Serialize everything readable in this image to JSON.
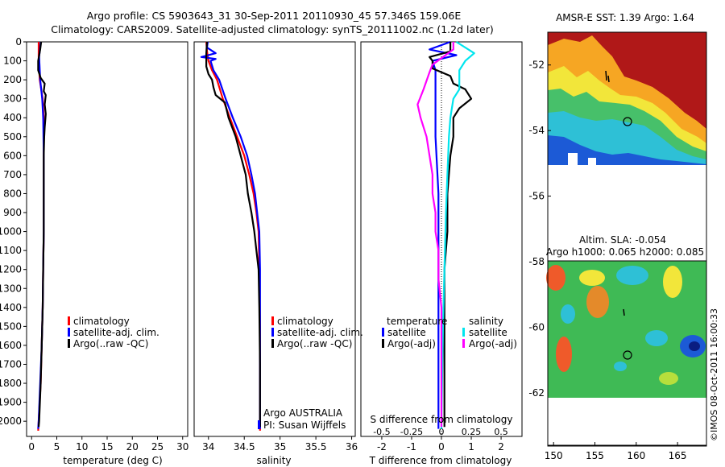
{
  "header": {
    "line1": "Argo profile: CS 5903643_31 30-Sep-2011 20110930_45 57.346S 159.06E",
    "line2": "Climatology: CARS2009. Satellite-adjusted climatology: synTS_20111002.nc (1.2d later)"
  },
  "colors": {
    "climatology": "#ff0000",
    "satellite_adj": "#0000ff",
    "argo": "#000000",
    "satellite_salinity": "#00e5ee",
    "argo_salinity_adj": "#ff00ff"
  },
  "legends": {
    "temperature_panel": [
      "climatology",
      "satellite-adj. clim.",
      "Argo(..raw -QC)"
    ],
    "salinity_panel": [
      "climatology",
      "satellite-adj. clim.",
      "Argo(..raw -QC)"
    ],
    "difference_panel": {
      "temp_heading": "temperature",
      "sal_heading": "salinity",
      "temp_items": [
        "satellite",
        "Argo(-adj)"
      ],
      "sal_items": [
        "satellite",
        "Argo(-adj)"
      ]
    }
  },
  "credits": {
    "agency": "Argo AUSTRALIA",
    "pi": "PI: Susan Wijffels",
    "stamp": "©IMOS 08-Oct-2011 16:00:33"
  },
  "maps": {
    "sst_title": "AMSR-E SST: 1.39 Argo: 1.64",
    "sla_title1": "Altim. SLA: -0.054",
    "sla_title2": "Argo h1000: 0.065 h2000: 0.085",
    "y_ticks": [
      "-52",
      "-54",
      "-56",
      "-58",
      "-60",
      "-62"
    ],
    "x_ticks": [
      "150",
      "155",
      "160",
      "165"
    ],
    "float_position": {
      "lon": 159.06,
      "lat": -57.346
    }
  },
  "chart_data": [
    {
      "type": "line",
      "panel": "temperature",
      "xlabel": "temperature (deg C)",
      "ylabel": "",
      "xlim": [
        -1,
        31
      ],
      "ylim": [
        2080,
        0
      ],
      "x_ticks": [
        "0",
        "5",
        "10",
        "15",
        "20",
        "25",
        "30"
      ],
      "y_ticks": [
        "0",
        "100",
        "200",
        "300",
        "400",
        "500",
        "600",
        "700",
        "800",
        "900",
        "1000",
        "1100",
        "1200",
        "1300",
        "1400",
        "1500",
        "1600",
        "1700",
        "1800",
        "1900",
        "2000"
      ],
      "series": [
        {
          "name": "climatology",
          "points": [
            [
              1.4,
              0
            ],
            [
              1.4,
              80
            ],
            [
              1.6,
              200
            ],
            [
              2.2,
              300
            ],
            [
              2.4,
              400
            ],
            [
              2.4,
              600
            ],
            [
              2.4,
              800
            ],
            [
              2.4,
              1000
            ],
            [
              2.3,
              1200
            ],
            [
              2.2,
              1400
            ],
            [
              2.0,
              1600
            ],
            [
              1.8,
              1800
            ],
            [
              1.4,
              2000
            ],
            [
              1.3,
              2050
            ]
          ]
        },
        {
          "name": "satellite-adj. clim.",
          "points": [
            [
              1.8,
              0
            ],
            [
              1.5,
              80
            ],
            [
              1.7,
              200
            ],
            [
              2.1,
              300
            ],
            [
              2.3,
              400
            ],
            [
              2.4,
              600
            ],
            [
              2.4,
              800
            ],
            [
              2.4,
              1000
            ],
            [
              2.3,
              1200
            ],
            [
              2.2,
              1400
            ],
            [
              2.0,
              1600
            ],
            [
              1.7,
              1800
            ],
            [
              1.4,
              2000
            ],
            [
              1.3,
              2040
            ]
          ]
        },
        {
          "name": "Argo(..raw -QC)",
          "points": [
            [
              1.9,
              0
            ],
            [
              1.7,
              40
            ],
            [
              1.3,
              100
            ],
            [
              1.3,
              150
            ],
            [
              1.8,
              190
            ],
            [
              2.6,
              220
            ],
            [
              2.4,
              260
            ],
            [
              2.8,
              280
            ],
            [
              2.6,
              330
            ],
            [
              2.8,
              380
            ],
            [
              2.6,
              450
            ],
            [
              2.5,
              500
            ],
            [
              2.4,
              600
            ],
            [
              2.4,
              800
            ],
            [
              2.4,
              1000
            ],
            [
              2.3,
              1200
            ],
            [
              2.2,
              1400
            ],
            [
              2.0,
              1600
            ],
            [
              1.8,
              1800
            ],
            [
              1.5,
              2000
            ],
            [
              1.4,
              2030
            ]
          ]
        }
      ]
    },
    {
      "type": "line",
      "panel": "salinity",
      "xlabel": "salinity",
      "ylabel": "",
      "xlim": [
        33.8,
        36.05
      ],
      "ylim": [
        2080,
        0
      ],
      "x_ticks": [
        "34",
        "34.5",
        "35",
        "35.5",
        "36"
      ],
      "series": [
        {
          "name": "climatology",
          "points": [
            [
              33.97,
              0
            ],
            [
              33.98,
              50
            ],
            [
              34.0,
              100
            ],
            [
              34.05,
              150
            ],
            [
              34.12,
              200
            ],
            [
              34.2,
              300
            ],
            [
              34.3,
              400
            ],
            [
              34.4,
              500
            ],
            [
              34.5,
              600
            ],
            [
              34.57,
              700
            ],
            [
              34.63,
              800
            ],
            [
              34.67,
              900
            ],
            [
              34.7,
              1000
            ],
            [
              34.71,
              1200
            ],
            [
              34.72,
              1500
            ],
            [
              34.72,
              2000
            ],
            [
              34.72,
              2050
            ]
          ]
        },
        {
          "name": "satellite-adj. clim.",
          "points": [
            [
              33.99,
              0
            ],
            [
              33.98,
              30
            ],
            [
              34.1,
              60
            ],
            [
              33.9,
              80
            ],
            [
              34.1,
              90
            ],
            [
              34.03,
              100
            ],
            [
              34.07,
              150
            ],
            [
              34.15,
              200
            ],
            [
              34.24,
              300
            ],
            [
              34.34,
              400
            ],
            [
              34.45,
              500
            ],
            [
              34.54,
              600
            ],
            [
              34.6,
              700
            ],
            [
              34.65,
              800
            ],
            [
              34.68,
              900
            ],
            [
              34.71,
              1000
            ],
            [
              34.72,
              1200
            ],
            [
              34.72,
              1500
            ],
            [
              34.72,
              2000
            ],
            [
              34.72,
              2040
            ]
          ]
        },
        {
          "name": "Argo(..raw -QC)",
          "points": [
            [
              33.98,
              0
            ],
            [
              33.97,
              60
            ],
            [
              33.97,
              130
            ],
            [
              34.0,
              170
            ],
            [
              34.05,
              200
            ],
            [
              34.07,
              240
            ],
            [
              34.1,
              280
            ],
            [
              34.23,
              320
            ],
            [
              34.28,
              400
            ],
            [
              34.38,
              500
            ],
            [
              34.45,
              600
            ],
            [
              34.52,
              700
            ],
            [
              34.55,
              800
            ],
            [
              34.6,
              900
            ],
            [
              34.64,
              1000
            ],
            [
              34.67,
              1100
            ],
            [
              34.7,
              1200
            ],
            [
              34.71,
              1400
            ],
            [
              34.72,
              1700
            ],
            [
              34.72,
              2000
            ],
            [
              34.72,
              2030
            ]
          ]
        }
      ]
    },
    {
      "type": "line",
      "panel": "difference",
      "xlabel": "T difference from climatology",
      "top_label": "S difference from climatology",
      "xlim": [
        -2.7,
        2.7
      ],
      "ylim": [
        2080,
        0
      ],
      "x_ticks": [
        "-2",
        "-1",
        "0",
        "1",
        "2"
      ],
      "s_ticks": [
        "-0.5",
        "-0.25",
        "0",
        "0.25",
        "0.5"
      ],
      "series": [
        {
          "name": "temperature satellite",
          "points": [
            [
              0.3,
              0
            ],
            [
              -0.4,
              40
            ],
            [
              0.5,
              70
            ],
            [
              -0.3,
              100
            ],
            [
              -0.2,
              150
            ],
            [
              -0.2,
              200
            ],
            [
              -0.2,
              300
            ],
            [
              -0.2,
              500
            ],
            [
              -0.1,
              800
            ],
            [
              -0.1,
              1200
            ],
            [
              -0.1,
              1600
            ],
            [
              -0.1,
              2000
            ],
            [
              -0.1,
              2040
            ]
          ]
        },
        {
          "name": "temperature Argo(-adj)",
          "points": [
            [
              0.3,
              0
            ],
            [
              0.3,
              50
            ],
            [
              -0.4,
              80
            ],
            [
              -0.3,
              100
            ],
            [
              -0.3,
              140
            ],
            [
              0.3,
              180
            ],
            [
              0.4,
              220
            ],
            [
              0.8,
              250
            ],
            [
              1.0,
              300
            ],
            [
              0.6,
              350
            ],
            [
              0.4,
              400
            ],
            [
              0.4,
              500
            ],
            [
              0.3,
              600
            ],
            [
              0.2,
              800
            ],
            [
              0.2,
              1000
            ],
            [
              0.1,
              1200
            ],
            [
              0.1,
              1400
            ],
            [
              0.1,
              1700
            ],
            [
              0.1,
              2000
            ],
            [
              0.1,
              2030
            ]
          ]
        },
        {
          "name": "salinity satellite",
          "points": [
            [
              0.5,
              0
            ],
            [
              1.1,
              60
            ],
            [
              0.8,
              100
            ],
            [
              0.6,
              150
            ],
            [
              0.6,
              250
            ],
            [
              0.4,
              300
            ],
            [
              0.3,
              400
            ],
            [
              0.25,
              500
            ],
            [
              0.2,
              700
            ],
            [
              0.15,
              900
            ],
            [
              0.1,
              1200
            ],
            [
              0.05,
              1500
            ],
            [
              0.0,
              2000
            ],
            [
              0.0,
              2040
            ]
          ]
        },
        {
          "name": "salinity Argo(-adj)",
          "points": [
            [
              0.4,
              0
            ],
            [
              0.4,
              40
            ],
            [
              -0.3,
              120
            ],
            [
              -0.4,
              160
            ],
            [
              -0.6,
              250
            ],
            [
              -0.8,
              330
            ],
            [
              -0.7,
              400
            ],
            [
              -0.5,
              500
            ],
            [
              -0.4,
              600
            ],
            [
              -0.3,
              700
            ],
            [
              -0.3,
              800
            ],
            [
              -0.2,
              900
            ],
            [
              -0.2,
              1000
            ],
            [
              -0.1,
              1100
            ],
            [
              -0.1,
              1250
            ],
            [
              0.0,
              1400
            ],
            [
              0.0,
              1700
            ],
            [
              0.0,
              2030
            ]
          ]
        }
      ]
    }
  ]
}
